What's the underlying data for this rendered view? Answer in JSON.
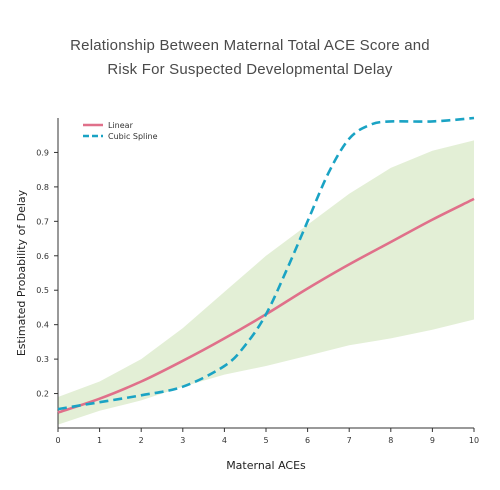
{
  "chart_data": {
    "type": "line",
    "title_lines": [
      "Relationship Between Maternal Total ACE Score and",
      "Risk For Suspected Developmental Delay"
    ],
    "xlabel": "Maternal ACEs",
    "ylabel": "Estimated Probability of Delay",
    "xlim": [
      0,
      10
    ],
    "ylim": [
      0.1,
      1.0
    ],
    "x_ticks": [
      0,
      1,
      2,
      3,
      4,
      5,
      6,
      7,
      8,
      9,
      10
    ],
    "y_ticks": [
      0.2,
      0.3,
      0.4,
      0.5,
      0.6,
      0.7,
      0.8,
      0.9
    ],
    "legend_position": "top-left",
    "series": [
      {
        "name": "Linear",
        "style": "solid",
        "color": "#e0708a",
        "x": [
          0,
          1,
          2,
          3,
          4,
          5,
          6,
          7,
          8,
          9,
          10
        ],
        "y": [
          0.145,
          0.185,
          0.235,
          0.295,
          0.36,
          0.43,
          0.505,
          0.575,
          0.64,
          0.705,
          0.765
        ]
      },
      {
        "name": "Cubic Spline",
        "style": "dashed",
        "color": "#1aa3c4",
        "x": [
          0,
          1,
          2,
          3,
          4,
          4.5,
          5,
          5.5,
          6,
          6.5,
          7,
          7.5,
          8,
          9,
          10
        ],
        "y": [
          0.155,
          0.175,
          0.195,
          0.22,
          0.28,
          0.34,
          0.43,
          0.56,
          0.7,
          0.84,
          0.94,
          0.98,
          0.99,
          0.99,
          1.0
        ]
      }
    ],
    "confidence_band": {
      "color": "#e3efd6",
      "x": [
        0,
        1,
        2,
        3,
        4,
        5,
        6,
        7,
        8,
        9,
        10
      ],
      "lower": [
        0.11,
        0.15,
        0.18,
        0.22,
        0.255,
        0.28,
        0.31,
        0.34,
        0.36,
        0.385,
        0.415
      ],
      "upper": [
        0.19,
        0.235,
        0.3,
        0.39,
        0.495,
        0.6,
        0.69,
        0.78,
        0.855,
        0.905,
        0.935
      ]
    }
  }
}
